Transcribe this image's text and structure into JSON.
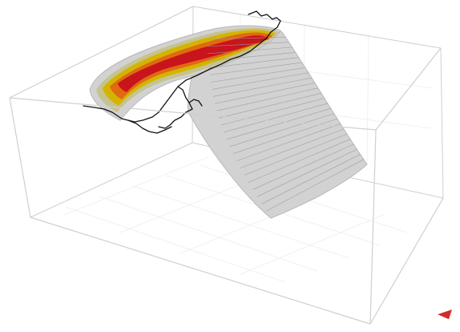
{
  "scene": {
    "kind": "3d-fault-slip-model",
    "surface_colors": {
      "base": "#d2d2d2",
      "shade": "#b8b8b8",
      "low_slip": "#c6c38f",
      "mid_slip": "#d4b400",
      "high_slip": "#e06a10",
      "peak_slip": "#c8141c"
    },
    "frame_color": "#cfcfcf",
    "coastline_color": "#111111",
    "axes_indicator_color": "#d22c2c",
    "grid": true
  }
}
